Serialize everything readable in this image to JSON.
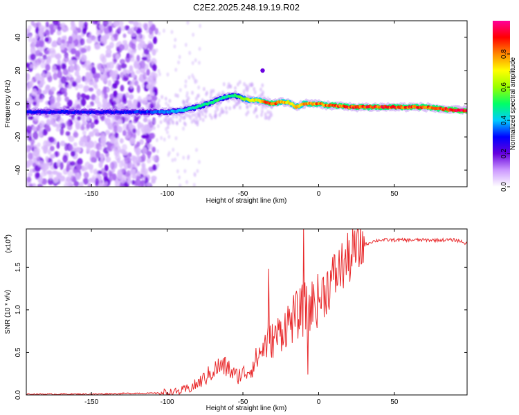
{
  "figure_title": "C2E2.2025.248.19.19.R02",
  "chart_data": [
    {
      "type": "heatmap",
      "title": "C2E2.2025.248.19.19.R02",
      "xlabel": "Height of straight line (km)",
      "ylabel": "Frequency (Hz)",
      "xlim": [
        -193,
        98
      ],
      "ylim": [
        -50,
        50
      ],
      "xticks": [
        -150,
        -100,
        -50,
        0,
        50
      ],
      "yticks": [
        -40,
        -20,
        0,
        20,
        40
      ],
      "colorbar": {
        "label": "Normalized spectral amplitude",
        "range": [
          0,
          1
        ],
        "ticks": [
          "0.0",
          "0.2",
          "0.4",
          "0.6",
          "0.8"
        ],
        "colormap": [
          "#ffffff",
          "#cc99ff",
          "#6600dd",
          "#0000ff",
          "#00ccff",
          "#00ff66",
          "#99ff00",
          "#ffff00",
          "#ff8800",
          "#ff0000",
          "#ff0099"
        ]
      },
      "ridge": {
        "x": [
          -193,
          -160,
          -130,
          -110,
          -100,
          -90,
          -80,
          -70,
          -62,
          -55,
          -50,
          -45,
          -40,
          -35,
          -30,
          -25,
          -20,
          -15,
          -12,
          -10,
          -5,
          0,
          5,
          10,
          20,
          30,
          50,
          70,
          80,
          90,
          98
        ],
        "freq": [
          -5,
          -5,
          -5,
          -5,
          -5,
          -4,
          -2,
          1,
          4,
          5,
          3,
          2,
          2,
          1,
          0,
          1,
          1,
          -2,
          -1,
          0,
          0,
          0,
          -1,
          -1,
          -2,
          -2,
          -2,
          -2,
          -3,
          -4,
          -4
        ],
        "peak_amplitude": [
          0.3,
          0.3,
          0.3,
          0.35,
          0.4,
          0.45,
          0.5,
          0.5,
          0.5,
          0.5,
          0.65,
          0.7,
          0.75,
          0.85,
          0.9,
          0.8,
          0.75,
          0.8,
          0.75,
          0.8,
          0.85,
          0.85,
          0.85,
          0.9,
          0.9,
          0.9,
          0.9,
          0.9,
          0.9,
          0.95,
          0.95
        ]
      },
      "noise_region_x": [
        -193,
        -107
      ],
      "outlier_point": {
        "x": -37,
        "freq": 20
      }
    },
    {
      "type": "line",
      "xlabel": "Height of straight line (km)",
      "ylabel": "SNR (10 * v/v)",
      "multiplier_label": "(x10",
      "multiplier_exponent": "4",
      "xlim": [
        -193,
        98
      ],
      "ylim": [
        0,
        1.95
      ],
      "xticks": [
        -150,
        -100,
        -50,
        0,
        50
      ],
      "yticks": [
        "0.0",
        "0.5",
        "1.0",
        "1.5"
      ],
      "color": "#e8282a",
      "series": [
        {
          "name": "SNR",
          "x": [
            -193,
            -150,
            -120,
            -105,
            -100,
            -95,
            -90,
            -85,
            -80,
            -75,
            -70,
            -65,
            -60,
            -55,
            -50,
            -45,
            -40,
            -35,
            -30,
            -25,
            -20,
            -15,
            -10,
            -5,
            0,
            5,
            10,
            15,
            20,
            25,
            30,
            35,
            40,
            50,
            60,
            70,
            80,
            90,
            95,
            98
          ],
          "values": [
            0.01,
            0.01,
            0.02,
            0.02,
            0.03,
            0.03,
            0.05,
            0.08,
            0.13,
            0.2,
            0.28,
            0.34,
            0.32,
            0.22,
            0.25,
            0.3,
            0.45,
            0.6,
            0.65,
            0.75,
            0.85,
            0.92,
            1.0,
            1.05,
            1.12,
            1.25,
            1.38,
            1.5,
            1.6,
            1.7,
            1.76,
            1.8,
            1.82,
            1.82,
            1.82,
            1.82,
            1.82,
            1.82,
            1.8,
            1.77
          ]
        }
      ],
      "spikes": [
        {
          "x": -33,
          "value": 1.48
        },
        {
          "x": -10,
          "value": 1.95
        },
        {
          "x": -7,
          "value": 0.24
        }
      ]
    }
  ]
}
